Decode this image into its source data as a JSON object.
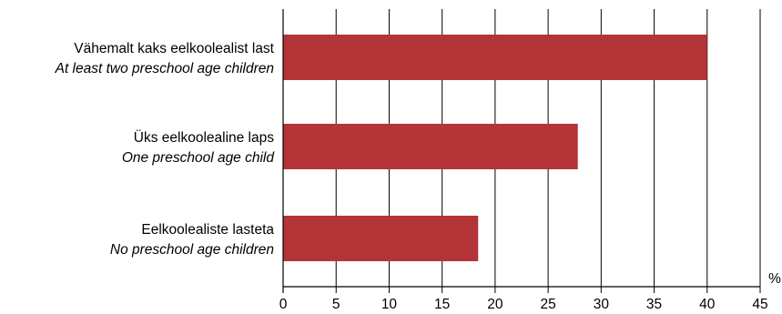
{
  "chart_data": {
    "type": "bar",
    "orientation": "horizontal",
    "categories": [
      {
        "label_et": "Vähemalt kaks eelkoolealist last",
        "label_en": "At least two preschool age children"
      },
      {
        "label_et": "Üks eelkoolealine laps",
        "label_en": "One preschool age child"
      },
      {
        "label_et": "Eelkoolealiste lasteta",
        "label_en": "No preschool age children"
      }
    ],
    "values": [
      40,
      27.8,
      18.4
    ],
    "xlim": [
      0,
      45
    ],
    "xticks": [
      0,
      5,
      10,
      15,
      20,
      25,
      30,
      35,
      40,
      45
    ],
    "unit_label": "%",
    "grid": "vertical",
    "legend": "none",
    "bar_color": "#b33538"
  }
}
